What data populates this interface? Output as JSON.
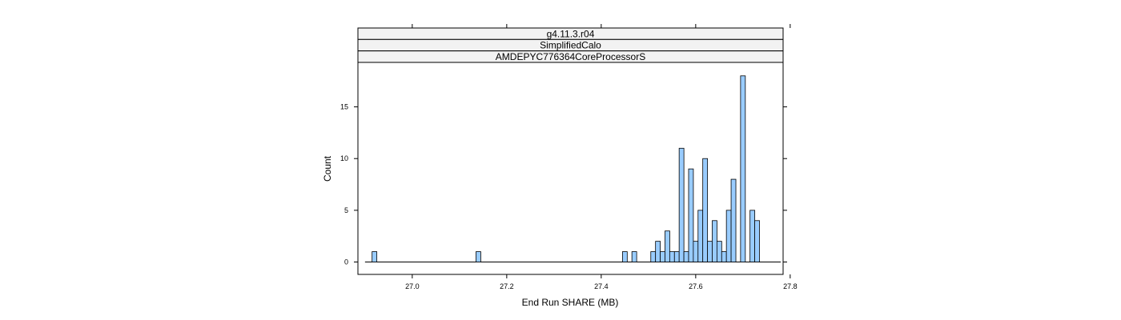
{
  "chart_data": {
    "type": "bar",
    "strips": [
      "g4.11.3.r04",
      "SimplifiedCalo",
      "AMDEPYC776364CoreProcessorS"
    ],
    "xlabel": "End Run SHARE (MB)",
    "ylabel": "Count",
    "xlim": [
      26.885,
      27.785
    ],
    "ylim": [
      -1.2,
      19.3
    ],
    "x_ticks": [
      27.0,
      27.2,
      27.4,
      27.6,
      27.8
    ],
    "x_tick_labels": [
      "27.0",
      "27.2",
      "27.4",
      "27.6",
      "27.8"
    ],
    "y_ticks": [
      0,
      5,
      10,
      15
    ],
    "y_tick_labels": [
      "0",
      "5",
      "10",
      "15"
    ],
    "bin_width": 0.0101,
    "baseline_range": [
      26.9,
      27.78
    ],
    "bins": [
      {
        "x": 26.92,
        "count": 1
      },
      {
        "x": 27.14,
        "count": 1
      },
      {
        "x": 27.45,
        "count": 1
      },
      {
        "x": 27.47,
        "count": 1
      },
      {
        "x": 27.51,
        "count": 1
      },
      {
        "x": 27.52,
        "count": 2
      },
      {
        "x": 27.53,
        "count": 1
      },
      {
        "x": 27.54,
        "count": 3
      },
      {
        "x": 27.55,
        "count": 1
      },
      {
        "x": 27.56,
        "count": 1
      },
      {
        "x": 27.57,
        "count": 11
      },
      {
        "x": 27.58,
        "count": 1
      },
      {
        "x": 27.59,
        "count": 9
      },
      {
        "x": 27.6,
        "count": 2
      },
      {
        "x": 27.61,
        "count": 5
      },
      {
        "x": 27.62,
        "count": 10
      },
      {
        "x": 27.63,
        "count": 2
      },
      {
        "x": 27.64,
        "count": 4
      },
      {
        "x": 27.65,
        "count": 2
      },
      {
        "x": 27.66,
        "count": 1
      },
      {
        "x": 27.67,
        "count": 5
      },
      {
        "x": 27.68,
        "count": 8
      },
      {
        "x": 27.7,
        "count": 18
      },
      {
        "x": 27.72,
        "count": 5
      },
      {
        "x": 27.73,
        "count": 4
      }
    ],
    "colors": {
      "bar_fill": "#99CCFF",
      "bar_stroke": "#000000",
      "strip_fill": "#F2F2F2",
      "frame": "#000000"
    },
    "grid": false,
    "legend": "none"
  }
}
